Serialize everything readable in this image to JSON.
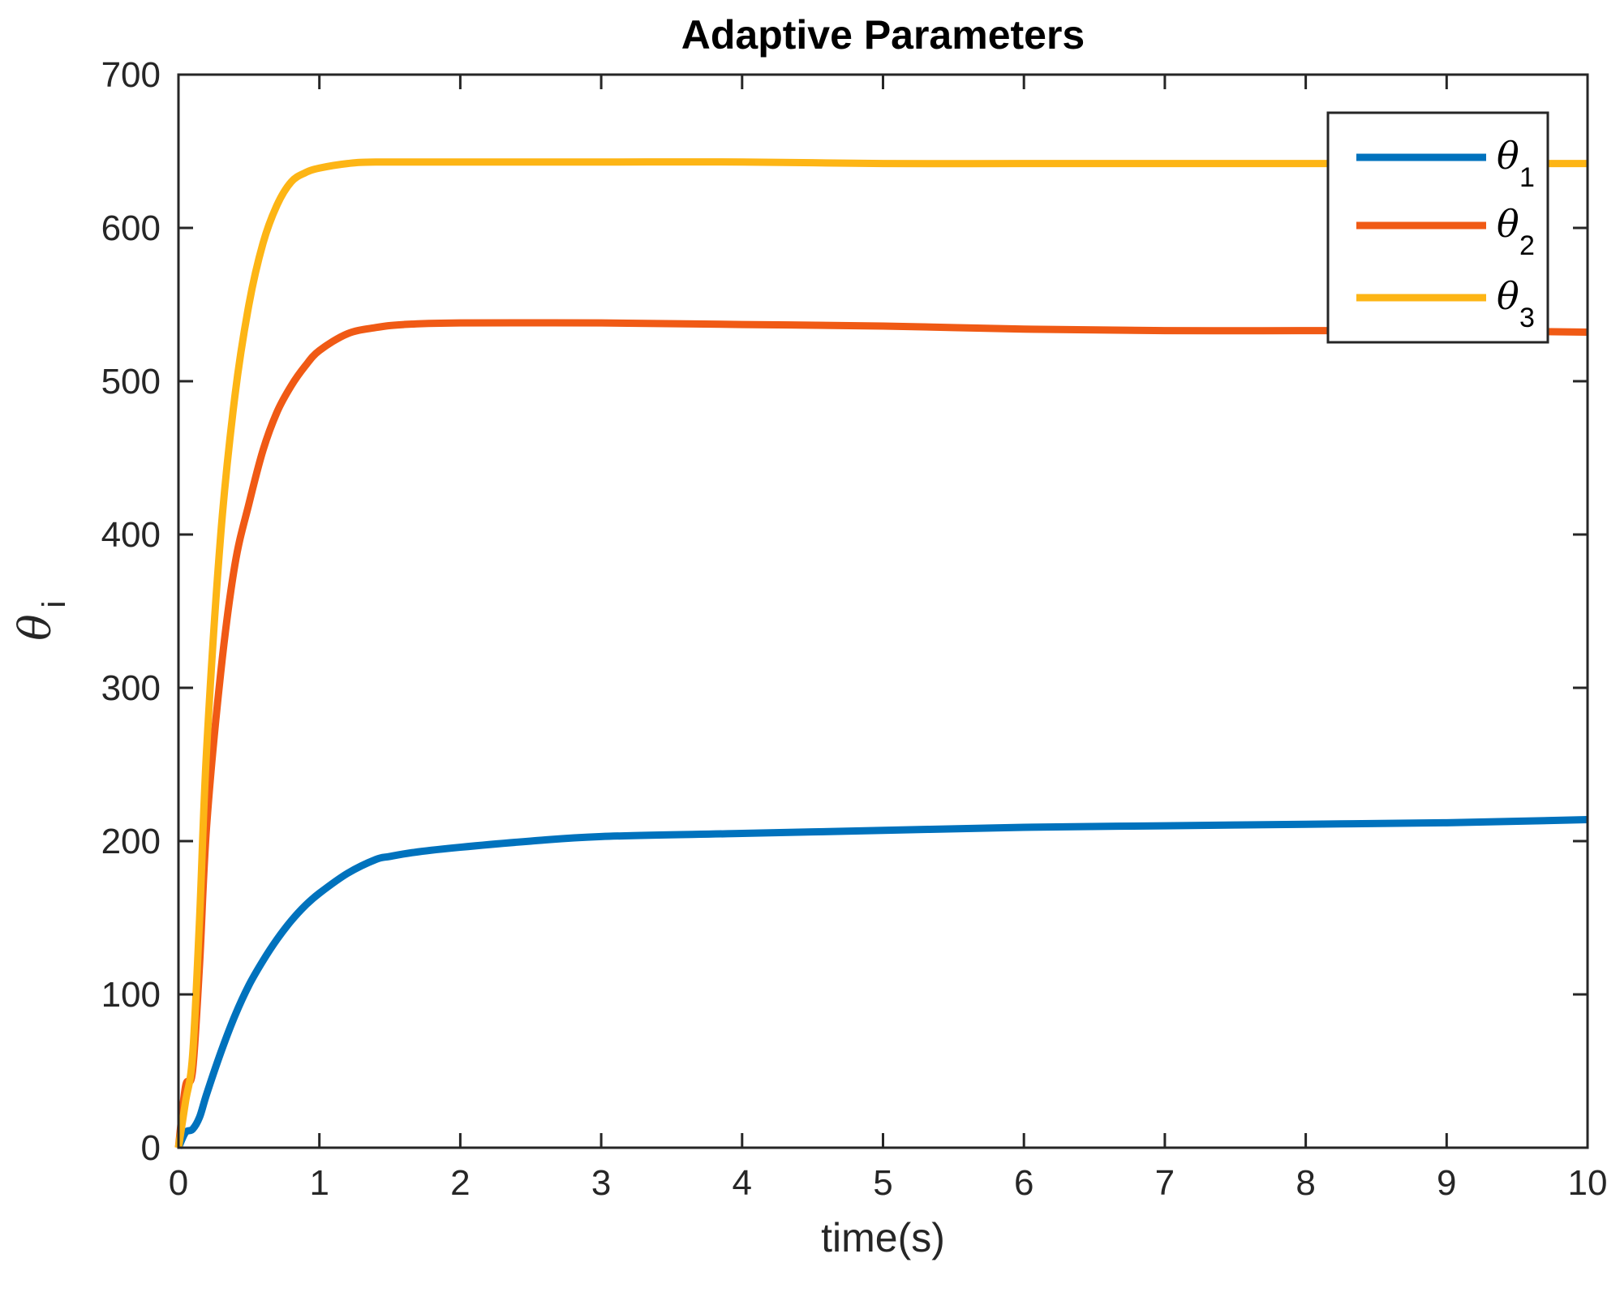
{
  "chart_data": {
    "type": "line",
    "title": "Adaptive Parameters",
    "xlabel": "time(s)",
    "ylabel": {
      "symbol": "θ",
      "subscript": "i"
    },
    "xlim": [
      0,
      10
    ],
    "ylim": [
      0,
      700
    ],
    "xticks": [
      0,
      1,
      2,
      3,
      4,
      5,
      6,
      7,
      8,
      9,
      10
    ],
    "yticks": [
      0,
      100,
      200,
      300,
      400,
      500,
      600,
      700
    ],
    "xtick_labels": [
      "0",
      "1",
      "2",
      "3",
      "4",
      "5",
      "6",
      "7",
      "8",
      "9",
      "10"
    ],
    "ytick_labels": [
      "0",
      "100",
      "200",
      "300",
      "400",
      "500",
      "600",
      "700"
    ],
    "grid": false,
    "legend_position": "top-right",
    "series": [
      {
        "name": "θ1",
        "symbol": "θ",
        "subscript": "1",
        "color": "#0072BD",
        "x": [
          0,
          0.05,
          0.1,
          0.15,
          0.2,
          0.3,
          0.4,
          0.5,
          0.6,
          0.7,
          0.8,
          0.9,
          1.0,
          1.2,
          1.4,
          1.5,
          1.7,
          2.0,
          2.5,
          3.0,
          4.0,
          5.0,
          6.0,
          7.0,
          8.0,
          9.0,
          10.0
        ],
        "values": [
          0,
          10,
          12,
          20,
          35,
          62,
          86,
          106,
          122,
          136,
          148,
          158,
          166,
          179,
          188,
          190,
          193,
          196,
          200,
          203,
          205,
          207,
          209,
          210,
          211,
          212,
          214
        ]
      },
      {
        "name": "θ2",
        "symbol": "θ",
        "subscript": "2",
        "color": "#F05A15",
        "x": [
          0,
          0.05,
          0.1,
          0.15,
          0.2,
          0.3,
          0.4,
          0.5,
          0.6,
          0.7,
          0.8,
          0.9,
          1.0,
          1.2,
          1.4,
          1.6,
          2.0,
          3.0,
          4.0,
          5.0,
          6.0,
          7.0,
          8.0,
          9.0,
          10.0
        ],
        "values": [
          0,
          40,
          50,
          120,
          210,
          310,
          380,
          420,
          455,
          480,
          497,
          510,
          520,
          531,
          535,
          537,
          538,
          538,
          537,
          536,
          534,
          533,
          533,
          533,
          532
        ]
      },
      {
        "name": "θ3",
        "symbol": "θ",
        "subscript": "3",
        "color": "#FDB515",
        "x": [
          0,
          0.05,
          0.1,
          0.15,
          0.2,
          0.3,
          0.4,
          0.5,
          0.6,
          0.7,
          0.8,
          0.9,
          1.0,
          1.2,
          1.4,
          2.0,
          3.0,
          4.0,
          5.0,
          6.0,
          7.0,
          8.0,
          9.0,
          10.0
        ],
        "values": [
          0,
          30,
          60,
          150,
          260,
          400,
          490,
          550,
          590,
          615,
          630,
          636,
          639,
          642,
          643,
          643,
          643,
          643,
          642,
          642,
          642,
          642,
          642,
          642
        ]
      }
    ]
  }
}
